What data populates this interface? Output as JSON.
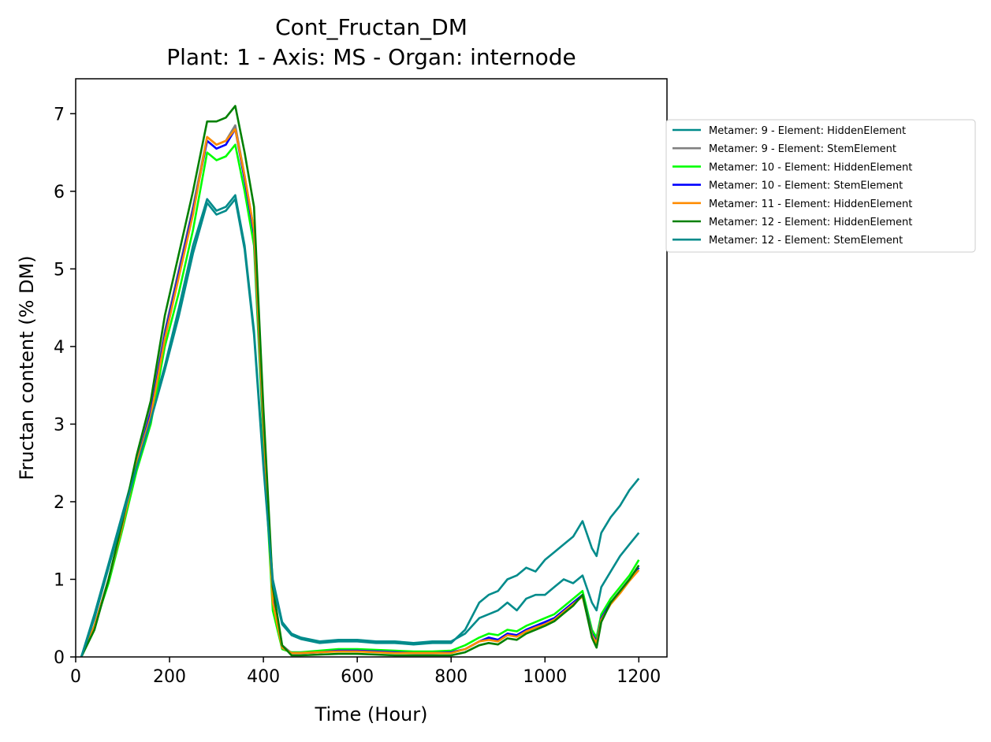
{
  "chart_data": {
    "type": "line",
    "title": "Cont_Fructan_DM",
    "subtitle": "Plant: 1 - Axis: MS - Organ: internode",
    "xlabel": "Time (Hour)",
    "ylabel": "Fructan content (% DM)",
    "xlim": [
      0,
      1260
    ],
    "ylim": [
      0,
      7.45
    ],
    "xticks": [
      0,
      200,
      400,
      600,
      800,
      1000,
      1200
    ],
    "yticks": [
      0,
      1,
      2,
      3,
      4,
      5,
      6,
      7
    ],
    "grid": false,
    "legend_position": "outside-right",
    "series": [
      {
        "name": "Metamer: 9 - Element: HiddenElement",
        "color": "#008b8b",
        "x": [
          12,
          40,
          70,
          100,
          130,
          160,
          190,
          220,
          250,
          280,
          300,
          320,
          340,
          360,
          380,
          400,
          420,
          440,
          460,
          480,
          520,
          560,
          600,
          640,
          680,
          720,
          760,
          800,
          830,
          860,
          880,
          900,
          920,
          940,
          960,
          980,
          1000,
          1020,
          1040,
          1060,
          1080,
          1100,
          1110,
          1120,
          1140,
          1160,
          1180,
          1200
        ],
        "y": [
          0.0,
          0.55,
          1.2,
          1.85,
          2.5,
          3.1,
          3.75,
          4.5,
          5.3,
          5.9,
          5.75,
          5.8,
          5.95,
          5.3,
          4.2,
          2.5,
          1.0,
          0.45,
          0.3,
          0.25,
          0.2,
          0.22,
          0.22,
          0.2,
          0.2,
          0.18,
          0.2,
          0.2,
          0.3,
          0.5,
          0.55,
          0.6,
          0.7,
          0.6,
          0.75,
          0.8,
          0.8,
          0.9,
          1.0,
          0.95,
          1.05,
          0.7,
          0.6,
          0.9,
          1.1,
          1.3,
          1.45,
          1.6
        ]
      },
      {
        "name": "Metamer: 9 - Element: StemElement",
        "color": "#808080",
        "x": [
          12,
          40,
          70,
          100,
          130,
          160,
          190,
          220,
          250,
          280,
          300,
          320,
          340,
          360,
          380,
          400,
          420,
          440,
          460,
          480,
          520,
          560,
          600,
          640,
          680,
          720,
          760,
          800,
          830,
          860,
          880,
          900,
          920,
          940,
          960,
          980,
          1000,
          1020,
          1040,
          1060,
          1080,
          1100,
          1110,
          1120,
          1140,
          1160,
          1180,
          1200
        ],
        "y": [
          0.0,
          0.4,
          1.0,
          1.7,
          2.5,
          3.2,
          4.2,
          5.0,
          5.8,
          6.7,
          6.6,
          6.65,
          6.85,
          6.2,
          5.5,
          3.0,
          0.8,
          0.15,
          0.05,
          0.05,
          0.06,
          0.08,
          0.08,
          0.07,
          0.06,
          0.05,
          0.05,
          0.06,
          0.1,
          0.2,
          0.25,
          0.22,
          0.3,
          0.28,
          0.35,
          0.4,
          0.45,
          0.5,
          0.6,
          0.7,
          0.8,
          0.3,
          0.2,
          0.5,
          0.7,
          0.85,
          1.0,
          1.15
        ]
      },
      {
        "name": "Metamer: 10 - Element: HiddenElement",
        "color": "#00ff00",
        "x": [
          12,
          40,
          70,
          100,
          130,
          160,
          190,
          220,
          250,
          280,
          300,
          320,
          340,
          360,
          380,
          400,
          420,
          440,
          460,
          480,
          520,
          560,
          600,
          640,
          680,
          720,
          760,
          800,
          830,
          860,
          880,
          900,
          920,
          940,
          960,
          980,
          1000,
          1020,
          1040,
          1060,
          1080,
          1100,
          1110,
          1120,
          1140,
          1160,
          1180,
          1200
        ],
        "y": [
          0.0,
          0.4,
          0.95,
          1.65,
          2.4,
          3.0,
          4.0,
          4.7,
          5.5,
          6.5,
          6.4,
          6.45,
          6.6,
          6.0,
          5.3,
          2.8,
          0.6,
          0.1,
          0.06,
          0.06,
          0.08,
          0.1,
          0.1,
          0.09,
          0.08,
          0.07,
          0.07,
          0.08,
          0.15,
          0.25,
          0.3,
          0.28,
          0.35,
          0.33,
          0.4,
          0.45,
          0.5,
          0.55,
          0.65,
          0.75,
          0.85,
          0.35,
          0.25,
          0.55,
          0.75,
          0.9,
          1.05,
          1.25
        ]
      },
      {
        "name": "Metamer: 10 - Element: StemElement",
        "color": "#0000ff",
        "x": [
          12,
          40,
          70,
          100,
          130,
          160,
          190,
          220,
          250,
          280,
          300,
          320,
          340,
          360,
          380,
          400,
          420,
          440,
          460,
          480,
          520,
          560,
          600,
          640,
          680,
          720,
          760,
          800,
          830,
          860,
          880,
          900,
          920,
          940,
          960,
          980,
          1000,
          1020,
          1040,
          1060,
          1080,
          1100,
          1110,
          1120,
          1140,
          1160,
          1180,
          1200
        ],
        "y": [
          0.0,
          0.4,
          1.0,
          1.7,
          2.5,
          3.15,
          4.15,
          4.95,
          5.75,
          6.65,
          6.55,
          6.6,
          6.8,
          6.15,
          5.45,
          2.95,
          0.75,
          0.12,
          0.05,
          0.05,
          0.06,
          0.08,
          0.08,
          0.07,
          0.06,
          0.05,
          0.05,
          0.06,
          0.1,
          0.2,
          0.25,
          0.22,
          0.3,
          0.28,
          0.35,
          0.4,
          0.45,
          0.5,
          0.6,
          0.7,
          0.8,
          0.3,
          0.2,
          0.5,
          0.7,
          0.85,
          1.0,
          1.15
        ]
      },
      {
        "name": "Metamer: 11 - Element: HiddenElement",
        "color": "#ff8c00",
        "x": [
          12,
          40,
          70,
          100,
          130,
          160,
          190,
          220,
          250,
          280,
          300,
          320,
          340,
          360,
          380,
          400,
          420,
          440,
          460,
          480,
          520,
          560,
          600,
          640,
          680,
          720,
          760,
          800,
          830,
          860,
          880,
          900,
          920,
          940,
          960,
          980,
          1000,
          1020,
          1040,
          1060,
          1080,
          1100,
          1110,
          1120,
          1140,
          1160,
          1180,
          1200
        ],
        "y": [
          0.0,
          0.4,
          1.0,
          1.7,
          2.5,
          3.1,
          4.1,
          4.9,
          5.7,
          6.7,
          6.6,
          6.65,
          6.8,
          6.2,
          5.5,
          3.0,
          0.7,
          0.12,
          0.05,
          0.05,
          0.06,
          0.07,
          0.07,
          0.06,
          0.05,
          0.05,
          0.05,
          0.05,
          0.1,
          0.2,
          0.22,
          0.2,
          0.28,
          0.26,
          0.33,
          0.38,
          0.42,
          0.48,
          0.58,
          0.68,
          0.78,
          0.28,
          0.18,
          0.48,
          0.68,
          0.82,
          0.98,
          1.12
        ]
      },
      {
        "name": "Metamer: 12 - Element: HiddenElement",
        "color": "#008000",
        "x": [
          12,
          40,
          70,
          100,
          130,
          160,
          190,
          220,
          250,
          280,
          300,
          320,
          340,
          360,
          380,
          400,
          420,
          440,
          460,
          480,
          520,
          560,
          600,
          640,
          680,
          720,
          760,
          800,
          830,
          860,
          880,
          900,
          920,
          940,
          960,
          980,
          1000,
          1020,
          1040,
          1060,
          1080,
          1100,
          1110,
          1120,
          1140,
          1160,
          1180,
          1200
        ],
        "y": [
          0.0,
          0.35,
          1.0,
          1.75,
          2.6,
          3.3,
          4.4,
          5.2,
          6.0,
          6.9,
          6.9,
          6.95,
          7.1,
          6.5,
          5.8,
          3.2,
          0.9,
          0.15,
          0.02,
          0.02,
          0.03,
          0.04,
          0.04,
          0.03,
          0.02,
          0.02,
          0.02,
          0.02,
          0.06,
          0.15,
          0.18,
          0.16,
          0.24,
          0.22,
          0.3,
          0.35,
          0.4,
          0.46,
          0.56,
          0.66,
          0.8,
          0.25,
          0.12,
          0.45,
          0.7,
          0.85,
          1.0,
          1.18
        ]
      },
      {
        "name": "Metamer: 12 - Element: StemElement",
        "color": "#008b8b",
        "x": [
          12,
          40,
          70,
          100,
          130,
          160,
          190,
          220,
          250,
          280,
          300,
          320,
          340,
          360,
          380,
          400,
          420,
          440,
          460,
          480,
          520,
          560,
          600,
          640,
          680,
          720,
          760,
          800,
          830,
          860,
          880,
          900,
          920,
          940,
          960,
          980,
          1000,
          1020,
          1040,
          1060,
          1080,
          1100,
          1110,
          1120,
          1140,
          1160,
          1180,
          1200
        ],
        "y": [
          0.0,
          0.5,
          1.15,
          1.8,
          2.45,
          3.05,
          3.7,
          4.4,
          5.2,
          5.85,
          5.7,
          5.75,
          5.9,
          5.25,
          4.15,
          2.45,
          0.95,
          0.42,
          0.28,
          0.23,
          0.18,
          0.2,
          0.2,
          0.18,
          0.18,
          0.16,
          0.18,
          0.18,
          0.35,
          0.7,
          0.8,
          0.85,
          1.0,
          1.05,
          1.15,
          1.1,
          1.25,
          1.35,
          1.45,
          1.55,
          1.75,
          1.4,
          1.3,
          1.6,
          1.8,
          1.95,
          2.15,
          2.3
        ]
      }
    ]
  }
}
